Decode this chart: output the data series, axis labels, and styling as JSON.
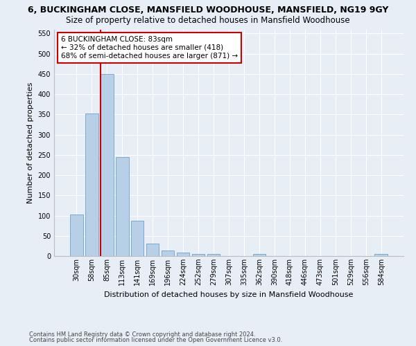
{
  "title": "6, BUCKINGHAM CLOSE, MANSFIELD WOODHOUSE, MANSFIELD, NG19 9GY",
  "subtitle": "Size of property relative to detached houses in Mansfield Woodhouse",
  "xlabel": "Distribution of detached houses by size in Mansfield Woodhouse",
  "ylabel": "Number of detached properties",
  "footer1": "Contains HM Land Registry data © Crown copyright and database right 2024.",
  "footer2": "Contains public sector information licensed under the Open Government Licence v3.0.",
  "bar_labels": [
    "30sqm",
    "58sqm",
    "85sqm",
    "113sqm",
    "141sqm",
    "169sqm",
    "196sqm",
    "224sqm",
    "252sqm",
    "279sqm",
    "307sqm",
    "335sqm",
    "362sqm",
    "390sqm",
    "418sqm",
    "446sqm",
    "473sqm",
    "501sqm",
    "529sqm",
    "556sqm",
    "584sqm"
  ],
  "bar_values": [
    103,
    353,
    449,
    245,
    87,
    30,
    13,
    9,
    5,
    5,
    0,
    0,
    5,
    0,
    0,
    0,
    0,
    0,
    0,
    0,
    5
  ],
  "bar_color": "#b8cfe8",
  "bar_edge_color": "#7aaad0",
  "annotation_text1": "6 BUCKINGHAM CLOSE: 83sqm",
  "annotation_text2": "← 32% of detached houses are smaller (418)",
  "annotation_text3": "68% of semi-detached houses are larger (871) →",
  "red_line_color": "#cc0000",
  "annotation_box_color": "#ffffff",
  "annotation_box_edge": "#cc0000",
  "ylim": [
    0,
    560
  ],
  "yticks": [
    0,
    50,
    100,
    150,
    200,
    250,
    300,
    350,
    400,
    450,
    500,
    550
  ],
  "bg_color": "#e8eef6",
  "grid_color": "#ffffff",
  "title_fontsize": 9,
  "subtitle_fontsize": 8.5,
  "ylabel_fontsize": 8,
  "xlabel_fontsize": 8,
  "tick_fontsize": 7,
  "footer_fontsize": 6,
  "annot_fontsize": 7.5
}
